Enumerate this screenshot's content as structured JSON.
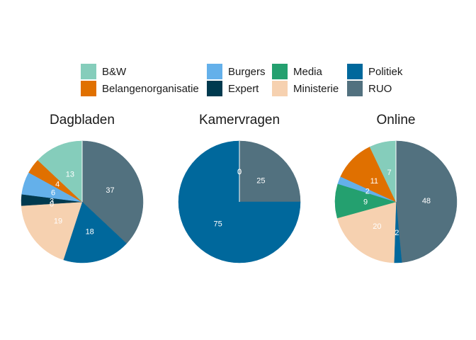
{
  "chart_data": {
    "type": "pie",
    "legend_position": "top",
    "legend": [
      {
        "name": "B&W",
        "color": "#85cdbb"
      },
      {
        "name": "Belangenorganisatie",
        "color": "#e07000"
      },
      {
        "name": "Burgers",
        "color": "#64b0ea"
      },
      {
        "name": "Expert",
        "color": "#003a4f"
      },
      {
        "name": "Media",
        "color": "#24a06f"
      },
      {
        "name": "Ministerie",
        "color": "#f6d1b0"
      },
      {
        "name": "Politiek",
        "color": "#00689c"
      },
      {
        "name": "RUO",
        "color": "#52717f"
      }
    ],
    "panels": [
      {
        "title": "Dagbladen",
        "slices": [
          {
            "category": "RUO",
            "value": 37
          },
          {
            "category": "Politiek",
            "value": 18
          },
          {
            "category": "Ministerie",
            "value": 19
          },
          {
            "category": "Media",
            "value": 0
          },
          {
            "category": "Expert",
            "value": 3
          },
          {
            "category": "Burgers",
            "value": 6
          },
          {
            "category": "Belangenorganisatie",
            "value": 4
          },
          {
            "category": "B&W",
            "value": 13
          }
        ]
      },
      {
        "title": "Kamervragen",
        "slices": [
          {
            "category": "RUO",
            "value": 25
          },
          {
            "category": "Politiek",
            "value": 75
          },
          {
            "category": "Ministerie",
            "value": 0
          },
          {
            "category": "B&W",
            "value": 0
          }
        ]
      },
      {
        "title": "Online",
        "slices": [
          {
            "category": "RUO",
            "value": 48
          },
          {
            "category": "Politiek",
            "value": 2
          },
          {
            "category": "Ministerie",
            "value": 20
          },
          {
            "category": "Media",
            "value": 9
          },
          {
            "category": "Burgers",
            "value": 2
          },
          {
            "category": "Belangenorganisatie",
            "value": 11
          },
          {
            "category": "B&W",
            "value": 7
          }
        ]
      }
    ]
  }
}
